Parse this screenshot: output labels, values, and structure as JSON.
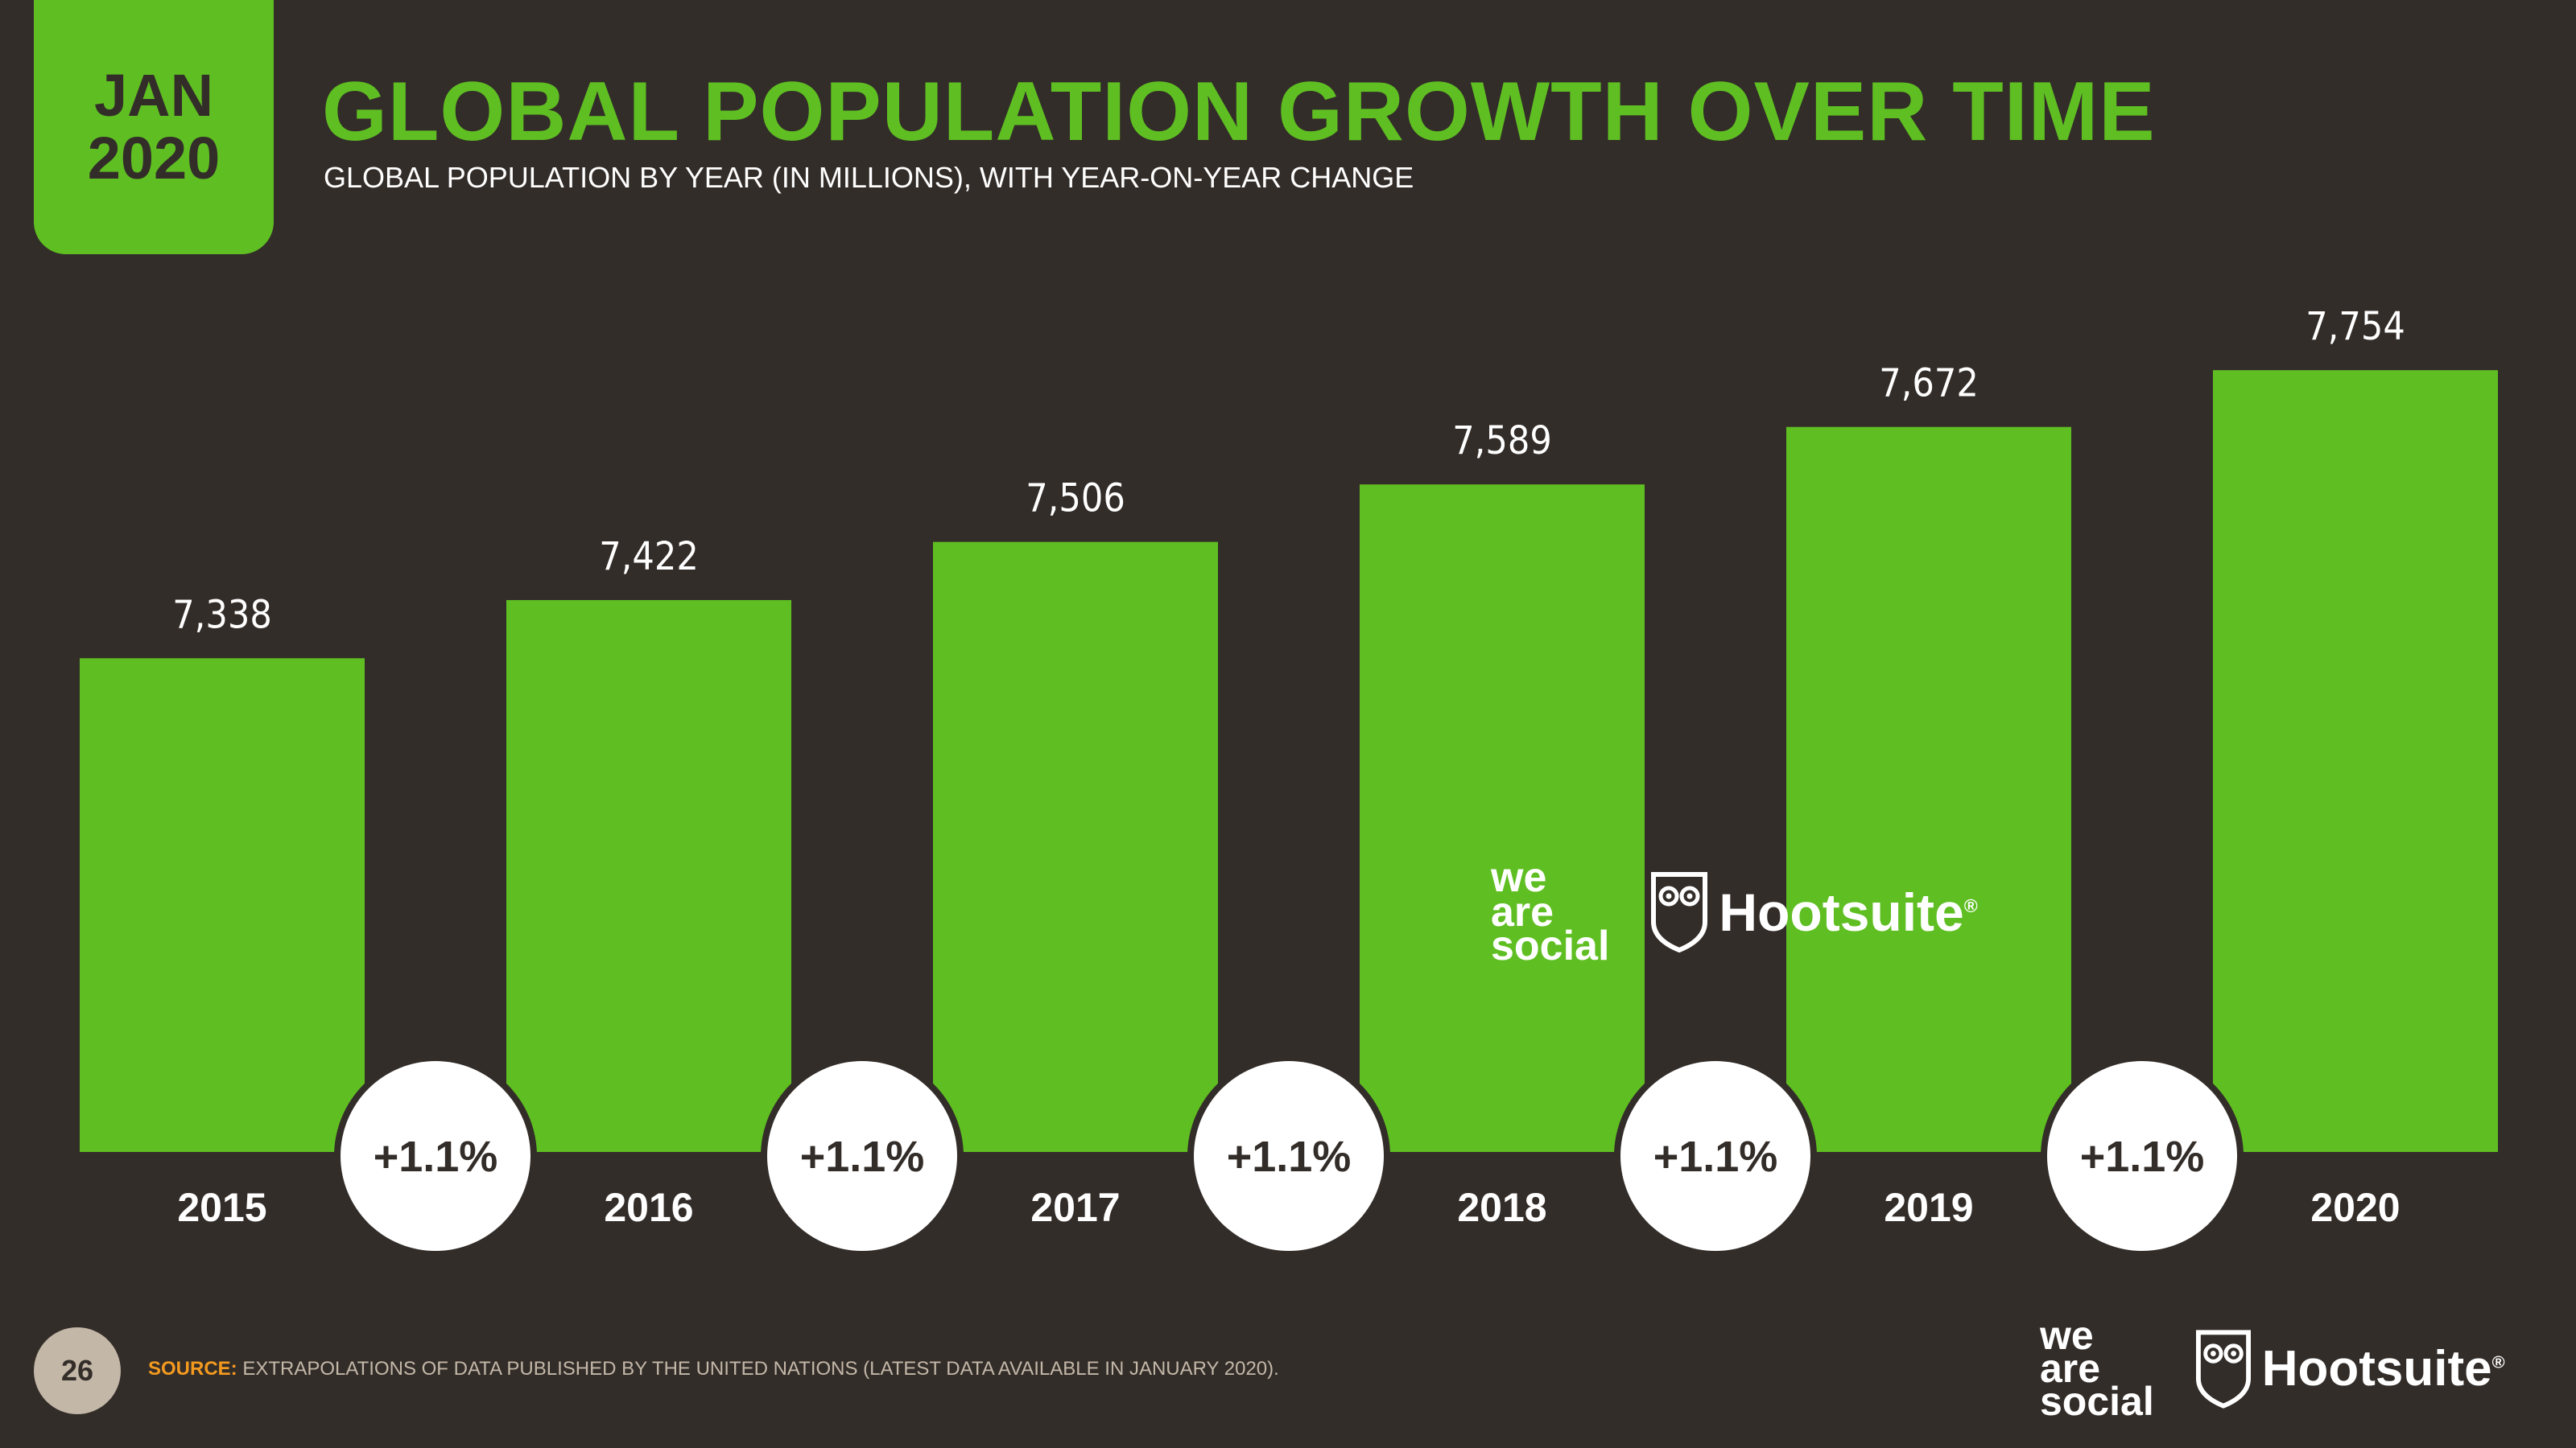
{
  "header": {
    "month": "JAN",
    "year": "2020",
    "title": "GLOBAL POPULATION GROWTH OVER TIME",
    "subtitle": "GLOBAL POPULATION BY YEAR (IN MILLIONS), WITH YEAR-ON-YEAR CHANGE"
  },
  "chart_data": {
    "type": "bar",
    "title": "GLOBAL POPULATION GROWTH OVER TIME",
    "subtitle": "GLOBAL POPULATION BY YEAR (IN MILLIONS), WITH YEAR-ON-YEAR CHANGE",
    "categories": [
      "2015",
      "2016",
      "2017",
      "2018",
      "2019",
      "2020"
    ],
    "values": [
      7338,
      7422,
      7506,
      7589,
      7672,
      7754
    ],
    "value_labels": [
      "7,338",
      "7,422",
      "7,506",
      "7,589",
      "7,672",
      "7,754"
    ],
    "yoy_changes": [
      "+1.1%",
      "+1.1%",
      "+1.1%",
      "+1.1%",
      "+1.1%"
    ],
    "xlabel": "",
    "ylabel": "",
    "ylim": [
      6625,
      7760
    ],
    "grid": false,
    "bar_color": "#5fbf22"
  },
  "branding": {
    "we_are_social": [
      "we",
      "are",
      "social"
    ],
    "hootsuite": "Hootsuite",
    "registered": "®"
  },
  "footer": {
    "page_number": "26",
    "source_label": "SOURCE:",
    "source_text": "EXTRAPOLATIONS OF DATA PUBLISHED BY THE UNITED NATIONS (LATEST DATA AVAILABLE IN JANUARY 2020)."
  },
  "colors": {
    "background": "#332d29",
    "accent": "#5fbf22",
    "source_label": "#f39a1f",
    "muted": "#c3b7a8"
  }
}
